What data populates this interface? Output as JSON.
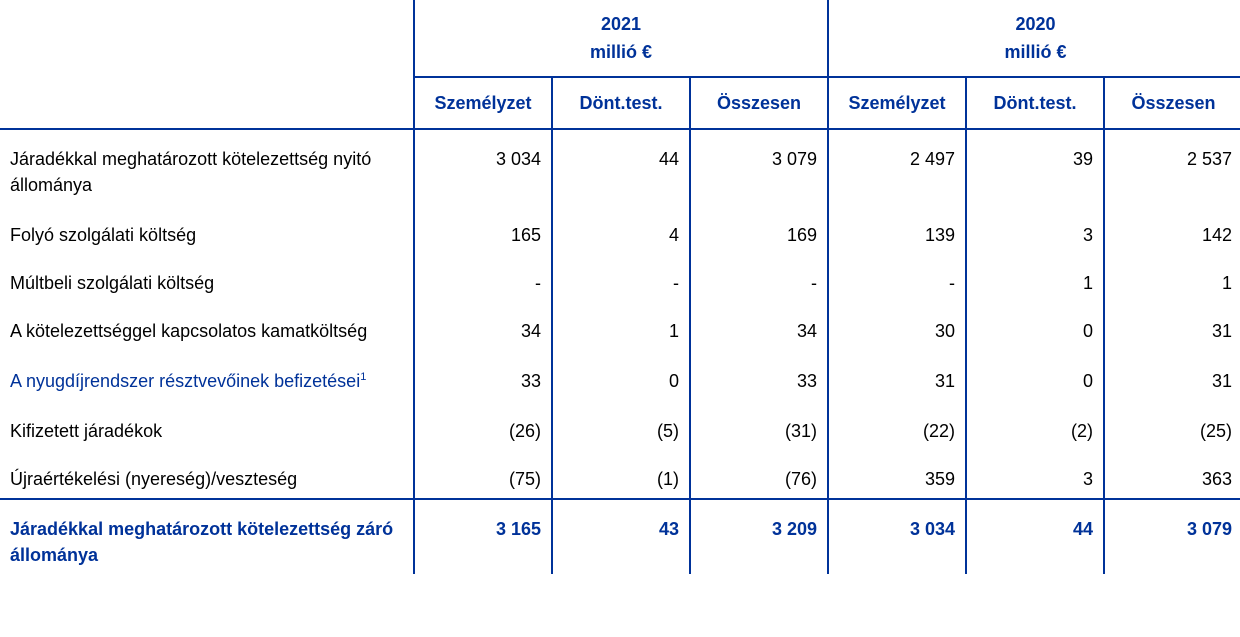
{
  "header": {
    "years": [
      {
        "year": "2021",
        "unit": "millió €"
      },
      {
        "year": "2020",
        "unit": "millió €"
      }
    ],
    "columns": [
      "Személyzet",
      "Dönt.test.",
      "Összesen",
      "Személyzet",
      "Dönt.test.",
      "Összesen"
    ]
  },
  "rows": [
    {
      "label": "Járadékkal meghatározott kötelezettség nyitó állománya",
      "values": [
        "3 034",
        "44",
        "3 079",
        "2 497",
        "39",
        "2 537"
      ]
    },
    {
      "label": "Folyó szolgálati költség",
      "values": [
        "165",
        "4",
        "169",
        "139",
        "3",
        "142"
      ]
    },
    {
      "label": "Múltbeli szolgálati költség",
      "values": [
        "-",
        "-",
        "-",
        "-",
        "1",
        "1"
      ]
    },
    {
      "label": "A kötelezettséggel kapcsolatos kamatköltség",
      "values": [
        "34",
        "1",
        "34",
        "30",
        "0",
        "31"
      ]
    },
    {
      "label": "A nyugdíjrendszer résztvevőinek befizetései",
      "footnote": "1",
      "values": [
        "33",
        "0",
        "33",
        "31",
        "0",
        "31"
      ]
    },
    {
      "label": "Kifizetett járadékok",
      "values": [
        "(26)",
        "(5)",
        "(31)",
        "(22)",
        "(2)",
        "(25)"
      ]
    },
    {
      "label": "Újraértékelési (nyereség)/veszteség",
      "values": [
        "(75)",
        "(1)",
        "(76)",
        "359",
        "3",
        "363"
      ]
    }
  ],
  "total": {
    "label": "Járadékkal meghatározott kötelezettség záró állománya",
    "values": [
      "3 165",
      "43",
      "3 209",
      "3 034",
      "44",
      "3 079"
    ]
  },
  "colors": {
    "accent": "#003299"
  }
}
